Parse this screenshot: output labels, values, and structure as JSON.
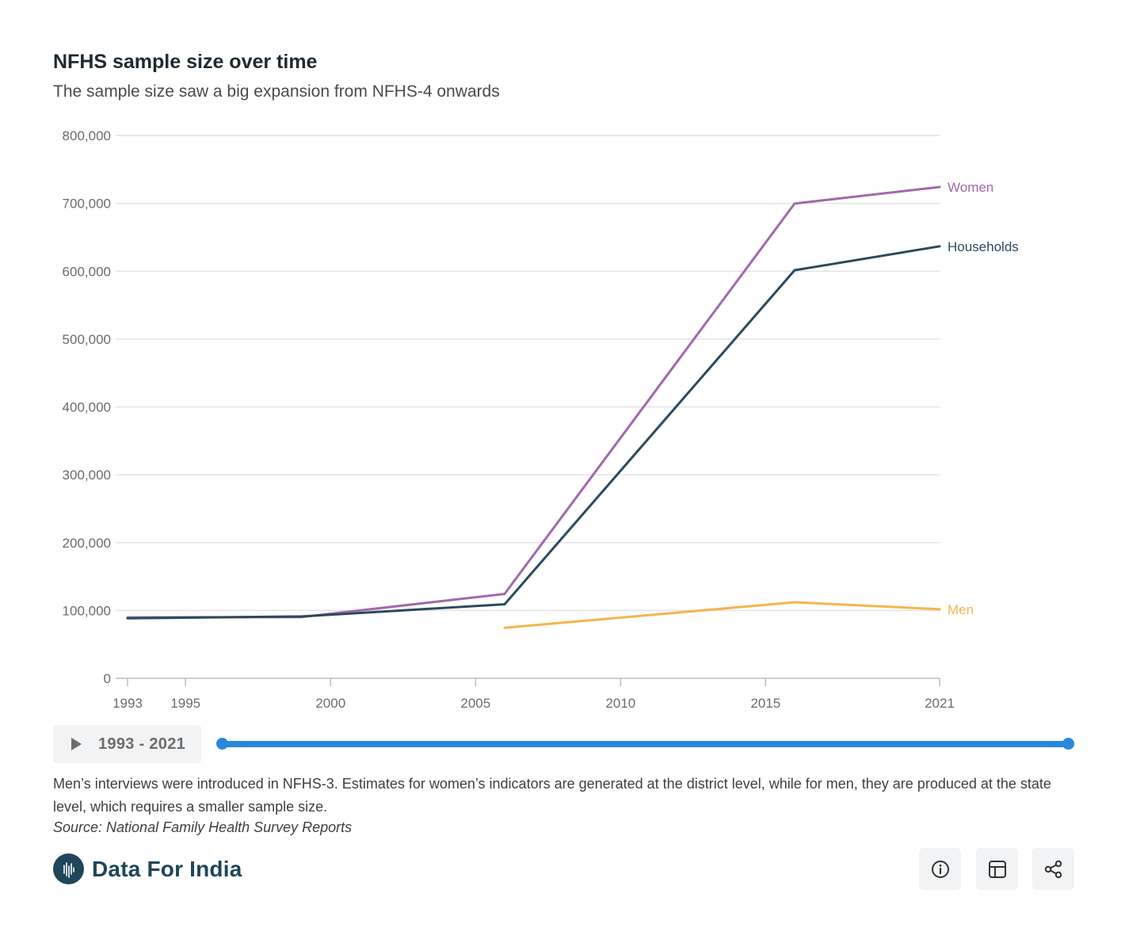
{
  "header": {
    "title": "NFHS sample size over time",
    "subtitle": "The sample size saw a big expansion from NFHS-4 onwards"
  },
  "chart_data": {
    "type": "line",
    "title": "NFHS sample size over time",
    "subtitle": "The sample size saw a big expansion from NFHS-4 onwards",
    "xlabel": "",
    "ylabel": "",
    "xlim": [
      1993,
      2021
    ],
    "ylim": [
      0,
      800000
    ],
    "x_ticks": [
      1993,
      1995,
      2000,
      2005,
      2010,
      2015,
      2021
    ],
    "y_ticks": [
      0,
      100000,
      200000,
      300000,
      400000,
      500000,
      600000,
      700000,
      800000
    ],
    "y_tick_labels": [
      "0",
      "100,000",
      "200,000",
      "300,000",
      "400,000",
      "500,000",
      "600,000",
      "700,000",
      "800,000"
    ],
    "grid": true,
    "legend": "inline labels at line ends",
    "series": [
      {
        "name": "Women",
        "color": "#a069ab",
        "x": [
          1993,
          1999,
          2006,
          2016,
          2021
        ],
        "values": [
          89777,
          90303,
          124385,
          699686,
          724115
        ]
      },
      {
        "name": "Households",
        "color": "#2b4a5c",
        "x": [
          1993,
          1999,
          2006,
          2016,
          2021
        ],
        "values": [
          88562,
          91196,
          109041,
          601509,
          636699
        ]
      },
      {
        "name": "Men",
        "color": "#f5b54e",
        "x": [
          2006,
          2016,
          2021
        ],
        "values": [
          74369,
          112122,
          101839
        ]
      }
    ]
  },
  "controls": {
    "range_label": "1993 - 2021",
    "range_start": 1993,
    "range_end": 2021
  },
  "footer": {
    "note": "Men’s interviews were introduced in NFHS-3. Estimates for women’s indicators are generated at the district level, while for men, they are produced at the state level, which requires a smaller sample size.",
    "source": "Source: National Family Health Survey Reports",
    "brand": "Data For India"
  },
  "icons": [
    "play-icon",
    "info-icon",
    "table-icon",
    "share-icon",
    "data-for-india-logo-icon"
  ]
}
